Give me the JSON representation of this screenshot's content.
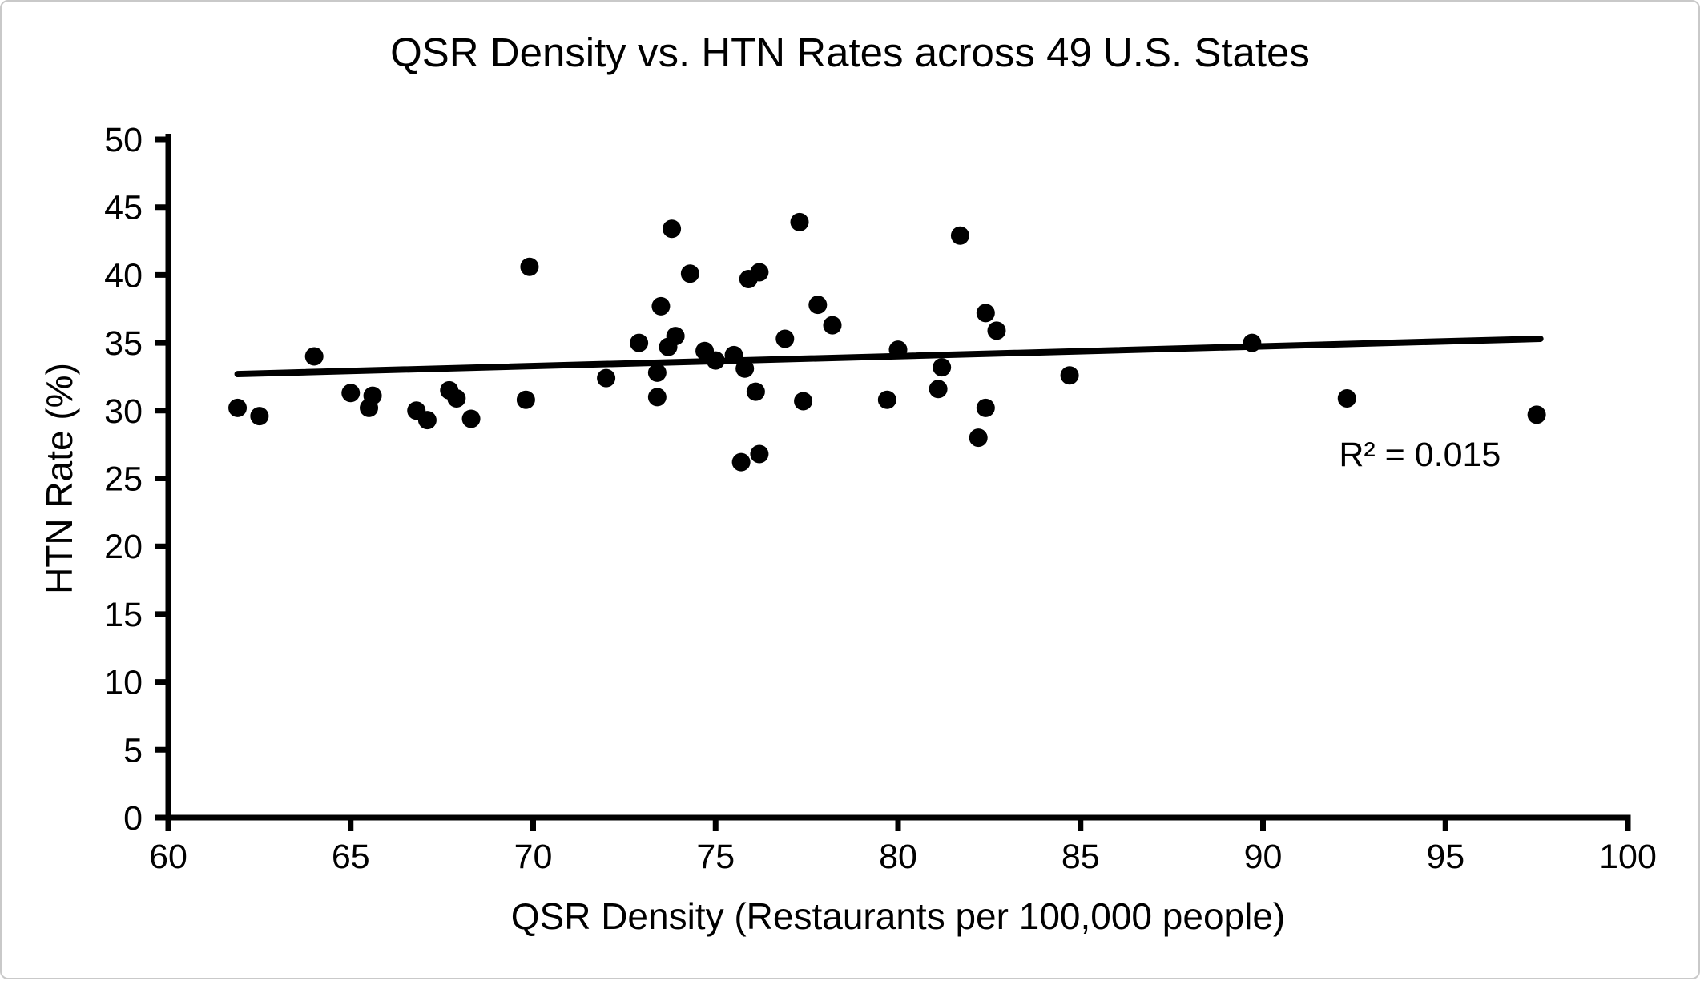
{
  "window": {
    "background": "#ffffff",
    "border_color": "#c9c9c9"
  },
  "chart_data": {
    "type": "scatter",
    "title": "QSR Density vs. HTN Rates across 49 U.S. States",
    "xlabel": "QSR Density (Restaurants per 100,000 people)",
    "ylabel": "HTN Rate (%)",
    "xlim": [
      60,
      100
    ],
    "ylim": [
      0,
      50
    ],
    "xticks": [
      60,
      65,
      70,
      75,
      80,
      85,
      90,
      95,
      100
    ],
    "yticks": [
      0,
      5,
      10,
      15,
      20,
      25,
      30,
      35,
      40,
      45,
      50
    ],
    "grid": false,
    "legend_position": "none",
    "marker_color": "#000000",
    "axis_color": "#000000",
    "points": [
      [
        61.9,
        30.2
      ],
      [
        62.5,
        29.6
      ],
      [
        64.0,
        34.0
      ],
      [
        65.0,
        31.3
      ],
      [
        65.5,
        30.2
      ],
      [
        65.6,
        31.1
      ],
      [
        66.8,
        30.0
      ],
      [
        67.1,
        29.3
      ],
      [
        67.7,
        31.5
      ],
      [
        67.9,
        30.9
      ],
      [
        68.3,
        29.4
      ],
      [
        69.8,
        30.8
      ],
      [
        69.9,
        40.6
      ],
      [
        72.0,
        32.4
      ],
      [
        72.9,
        35.0
      ],
      [
        73.4,
        32.8
      ],
      [
        73.4,
        31.0
      ],
      [
        73.5,
        37.7
      ],
      [
        73.7,
        34.7
      ],
      [
        73.8,
        43.4
      ],
      [
        73.9,
        35.5
      ],
      [
        74.3,
        40.1
      ],
      [
        74.7,
        34.4
      ],
      [
        75.0,
        33.7
      ],
      [
        75.5,
        34.1
      ],
      [
        75.7,
        26.2
      ],
      [
        75.8,
        33.1
      ],
      [
        75.9,
        39.7
      ],
      [
        76.1,
        31.4
      ],
      [
        76.2,
        40.2
      ],
      [
        76.2,
        26.8
      ],
      [
        76.9,
        35.3
      ],
      [
        77.3,
        43.9
      ],
      [
        77.4,
        30.7
      ],
      [
        77.8,
        37.8
      ],
      [
        78.2,
        36.3
      ],
      [
        79.7,
        30.8
      ],
      [
        80.0,
        34.5
      ],
      [
        81.1,
        31.6
      ],
      [
        81.2,
        33.2
      ],
      [
        81.7,
        42.9
      ],
      [
        82.2,
        28.0
      ],
      [
        82.4,
        37.2
      ],
      [
        82.4,
        30.2
      ],
      [
        82.7,
        35.9
      ],
      [
        84.7,
        32.6
      ],
      [
        89.7,
        35.0
      ],
      [
        92.3,
        30.9
      ],
      [
        97.5,
        29.7
      ]
    ],
    "trendline": {
      "x1": 61.9,
      "y1": 32.7,
      "x2": 97.6,
      "y2": 35.3,
      "color": "#000000"
    },
    "annotation": {
      "text": "R² = 0.015",
      "x": 94.3,
      "y": 26.8
    }
  }
}
